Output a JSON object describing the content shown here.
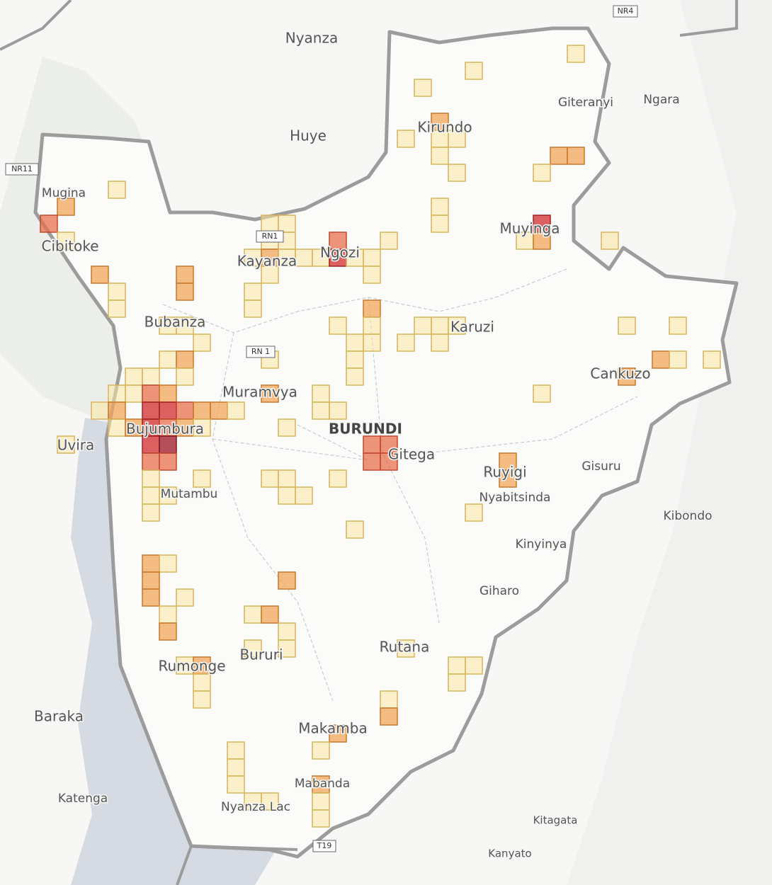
{
  "labels": [
    "Nyanza",
    "Huye",
    "Kirundo",
    "Giteranyi",
    "Ngara",
    "Mugina",
    "Cibitoke",
    "Muyinga",
    "Kayanza",
    "Ngozi",
    "Bubanza",
    "Karuzi",
    "Muramvya",
    "BURUNDI",
    "Bujumbura",
    "Gitega",
    "Uvira",
    "Cankuzo",
    "Ruyigi",
    "Gisuru",
    "Nyabitsinda",
    "Kibondo",
    "Mutambu",
    "Kinyinya",
    "Giharo",
    "Rutana",
    "Bururi",
    "Rumonge",
    "Baraka",
    "Makamba",
    "Mabanda",
    "Katenga",
    "Nyanza Lac",
    "Kitagata",
    "Kanyato"
  ],
  "road_shields": [
    "NR4",
    "NR11",
    "RN1",
    "RN 1",
    "T19"
  ]
}
